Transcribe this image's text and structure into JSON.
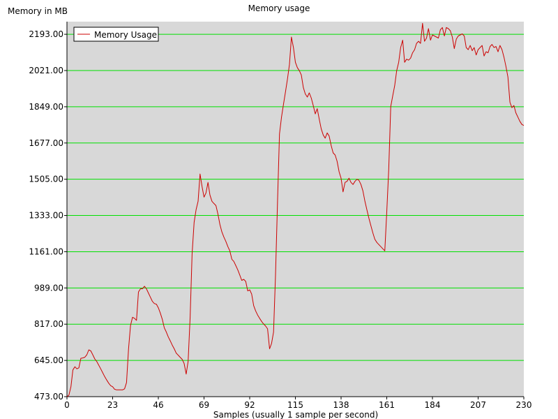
{
  "chart_data": {
    "type": "line",
    "title": "Memory usage",
    "ylabel": "Memory in MB",
    "xlabel": "Samples (usually 1 sample per second)",
    "xlim": [
      0,
      230
    ],
    "ylim": [
      473,
      2253
    ],
    "x_ticks": [
      0,
      23,
      46,
      69,
      92,
      115,
      138,
      161,
      184,
      207,
      230
    ],
    "y_ticks": [
      "473.00",
      "645.00",
      "817.00",
      "989.00",
      "1161.00",
      "1333.00",
      "1505.00",
      "1677.00",
      "1849.00",
      "2021.00",
      "2193.00"
    ],
    "grid": "horizontal",
    "grid_color": "#00e000",
    "background_color": "#d8d8d8",
    "legend_position": "top-left",
    "series": [
      {
        "name": "Memory Usage",
        "color": "#cc0000",
        "points": [
          [
            0,
            473
          ],
          [
            1,
            480
          ],
          [
            2,
            520
          ],
          [
            3,
            600
          ],
          [
            4,
            615
          ],
          [
            5,
            605
          ],
          [
            6,
            610
          ],
          [
            7,
            655
          ],
          [
            8,
            657
          ],
          [
            9,
            660
          ],
          [
            10,
            672
          ],
          [
            11,
            695
          ],
          [
            12,
            690
          ],
          [
            13,
            672
          ],
          [
            14,
            652
          ],
          [
            15,
            640
          ],
          [
            16,
            622
          ],
          [
            17,
            605
          ],
          [
            18,
            586
          ],
          [
            19,
            568
          ],
          [
            20,
            552
          ],
          [
            21,
            537
          ],
          [
            22,
            525
          ],
          [
            23,
            520
          ],
          [
            24,
            508
          ],
          [
            25,
            505
          ],
          [
            26,
            505
          ],
          [
            27,
            505
          ],
          [
            28,
            505
          ],
          [
            29,
            510
          ],
          [
            30,
            540
          ],
          [
            31,
            700
          ],
          [
            32,
            810
          ],
          [
            33,
            850
          ],
          [
            34,
            845
          ],
          [
            35,
            835
          ],
          [
            36,
            970
          ],
          [
            37,
            985
          ],
          [
            38,
            985
          ],
          [
            39,
            997
          ],
          [
            40,
            985
          ],
          [
            41,
            965
          ],
          [
            42,
            945
          ],
          [
            43,
            925
          ],
          [
            44,
            915
          ],
          [
            45,
            912
          ],
          [
            46,
            895
          ],
          [
            47,
            870
          ],
          [
            48,
            840
          ],
          [
            49,
            800
          ],
          [
            50,
            780
          ],
          [
            51,
            757
          ],
          [
            52,
            738
          ],
          [
            53,
            718
          ],
          [
            54,
            700
          ],
          [
            55,
            680
          ],
          [
            56,
            670
          ],
          [
            57,
            660
          ],
          [
            58,
            650
          ],
          [
            59,
            630
          ],
          [
            60,
            580
          ],
          [
            61,
            640
          ],
          [
            62,
            850
          ],
          [
            63,
            1150
          ],
          [
            64,
            1300
          ],
          [
            65,
            1360
          ],
          [
            66,
            1400
          ],
          [
            67,
            1530
          ],
          [
            68,
            1470
          ],
          [
            69,
            1420
          ],
          [
            70,
            1440
          ],
          [
            71,
            1490
          ],
          [
            72,
            1430
          ],
          [
            73,
            1400
          ],
          [
            74,
            1390
          ],
          [
            75,
            1380
          ],
          [
            76,
            1340
          ],
          [
            77,
            1290
          ],
          [
            78,
            1255
          ],
          [
            79,
            1230
          ],
          [
            80,
            1210
          ],
          [
            81,
            1185
          ],
          [
            82,
            1165
          ],
          [
            83,
            1125
          ],
          [
            84,
            1115
          ],
          [
            85,
            1095
          ],
          [
            86,
            1075
          ],
          [
            87,
            1050
          ],
          [
            88,
            1025
          ],
          [
            89,
            1030
          ],
          [
            90,
            1020
          ],
          [
            91,
            975
          ],
          [
            92,
            980
          ],
          [
            93,
            960
          ],
          [
            94,
            905
          ],
          [
            95,
            880
          ],
          [
            96,
            860
          ],
          [
            97,
            845
          ],
          [
            98,
            830
          ],
          [
            99,
            818
          ],
          [
            100,
            808
          ],
          [
            101,
            795
          ],
          [
            102,
            700
          ],
          [
            103,
            725
          ],
          [
            104,
            780
          ],
          [
            105,
            1050
          ],
          [
            106,
            1400
          ],
          [
            107,
            1720
          ],
          [
            108,
            1800
          ],
          [
            109,
            1860
          ],
          [
            110,
            1920
          ],
          [
            111,
            1980
          ],
          [
            112,
            2050
          ],
          [
            113,
            2180
          ],
          [
            114,
            2130
          ],
          [
            115,
            2060
          ],
          [
            116,
            2035
          ],
          [
            117,
            2020
          ],
          [
            118,
            2000
          ],
          [
            119,
            1940
          ],
          [
            120,
            1910
          ],
          [
            121,
            1895
          ],
          [
            122,
            1915
          ],
          [
            123,
            1890
          ],
          [
            124,
            1855
          ],
          [
            125,
            1815
          ],
          [
            126,
            1840
          ],
          [
            127,
            1790
          ],
          [
            128,
            1745
          ],
          [
            129,
            1715
          ],
          [
            130,
            1700
          ],
          [
            131,
            1725
          ],
          [
            132,
            1710
          ],
          [
            133,
            1665
          ],
          [
            134,
            1630
          ],
          [
            135,
            1620
          ],
          [
            136,
            1590
          ],
          [
            137,
            1540
          ],
          [
            138,
            1510
          ],
          [
            139,
            1445
          ],
          [
            140,
            1490
          ],
          [
            141,
            1495
          ],
          [
            142,
            1510
          ],
          [
            143,
            1490
          ],
          [
            144,
            1480
          ],
          [
            145,
            1495
          ],
          [
            146,
            1505
          ],
          [
            147,
            1500
          ],
          [
            148,
            1480
          ],
          [
            149,
            1450
          ],
          [
            150,
            1400
          ],
          [
            151,
            1360
          ],
          [
            152,
            1320
          ],
          [
            153,
            1285
          ],
          [
            154,
            1250
          ],
          [
            155,
            1220
          ],
          [
            156,
            1205
          ],
          [
            157,
            1195
          ],
          [
            158,
            1185
          ],
          [
            159,
            1175
          ],
          [
            160,
            1165
          ],
          [
            161,
            1350
          ],
          [
            162,
            1550
          ],
          [
            163,
            1850
          ],
          [
            164,
            1900
          ],
          [
            165,
            1950
          ],
          [
            166,
            2020
          ],
          [
            167,
            2060
          ],
          [
            168,
            2130
          ],
          [
            169,
            2165
          ],
          [
            170,
            2060
          ],
          [
            171,
            2075
          ],
          [
            172,
            2070
          ],
          [
            173,
            2080
          ],
          [
            174,
            2105
          ],
          [
            175,
            2120
          ],
          [
            176,
            2150
          ],
          [
            177,
            2160
          ],
          [
            178,
            2150
          ],
          [
            179,
            2245
          ],
          [
            180,
            2160
          ],
          [
            181,
            2175
          ],
          [
            182,
            2220
          ],
          [
            183,
            2165
          ],
          [
            184,
            2190
          ],
          [
            185,
            2185
          ],
          [
            186,
            2180
          ],
          [
            187,
            2175
          ],
          [
            188,
            2215
          ],
          [
            189,
            2225
          ],
          [
            190,
            2185
          ],
          [
            191,
            2225
          ],
          [
            192,
            2220
          ],
          [
            193,
            2210
          ],
          [
            194,
            2180
          ],
          [
            195,
            2125
          ],
          [
            196,
            2170
          ],
          [
            197,
            2185
          ],
          [
            198,
            2190
          ],
          [
            199,
            2195
          ],
          [
            200,
            2185
          ],
          [
            201,
            2130
          ],
          [
            202,
            2120
          ],
          [
            203,
            2140
          ],
          [
            204,
            2115
          ],
          [
            205,
            2130
          ],
          [
            206,
            2095
          ],
          [
            207,
            2120
          ],
          [
            208,
            2130
          ],
          [
            209,
            2140
          ],
          [
            210,
            2090
          ],
          [
            211,
            2110
          ],
          [
            212,
            2105
          ],
          [
            213,
            2135
          ],
          [
            214,
            2145
          ],
          [
            215,
            2130
          ],
          [
            216,
            2135
          ],
          [
            217,
            2110
          ],
          [
            218,
            2140
          ],
          [
            219,
            2120
          ],
          [
            220,
            2085
          ],
          [
            221,
            2040
          ],
          [
            222,
            1990
          ],
          [
            223,
            1870
          ],
          [
            224,
            1845
          ],
          [
            225,
            1855
          ],
          [
            226,
            1820
          ],
          [
            227,
            1800
          ],
          [
            228,
            1780
          ],
          [
            229,
            1765
          ],
          [
            230,
            1760
          ]
        ]
      }
    ]
  }
}
